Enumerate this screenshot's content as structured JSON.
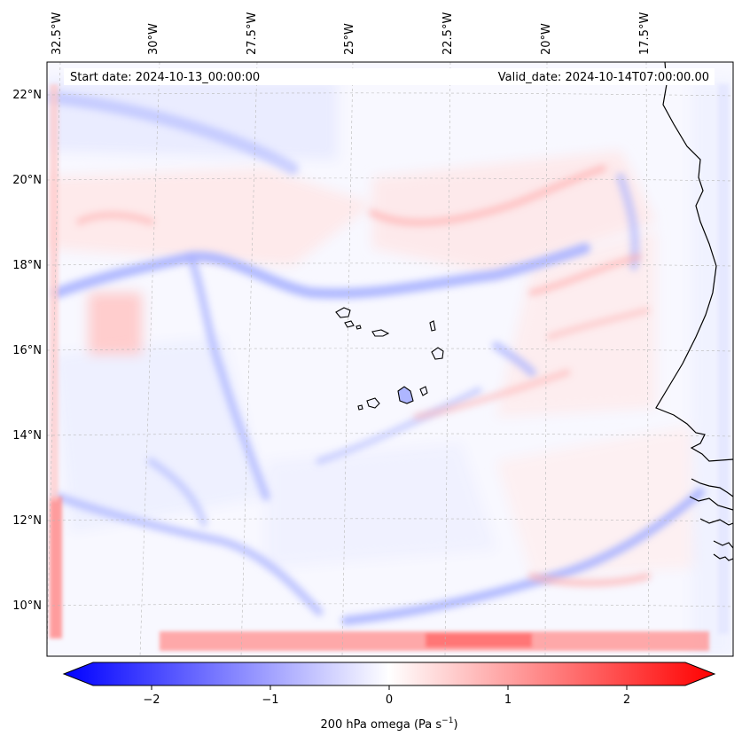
{
  "annotations": {
    "start_date": "Start date: 2024-10-13_00:00:00",
    "valid_date": "Valid_date: 2024-10-14T07:00:00.00"
  },
  "lon_labels": [
    "32.5°W",
    "30°W",
    "27.5°W",
    "25°W",
    "22.5°W",
    "20°W",
    "17.5°W"
  ],
  "lat_labels": [
    "22°N",
    "20°N",
    "18°N",
    "16°N",
    "14°N",
    "12°N",
    "10°N"
  ],
  "colorbar": {
    "label": "200 hPa omega (Pa s",
    "label_sup": "−1",
    "label_tail": ")",
    "ticks": [
      "−2",
      "−1",
      "0",
      "1",
      "2"
    ],
    "tick_values": [
      -2,
      -1,
      0,
      1,
      2
    ],
    "vmin": -2.6,
    "vmax": 2.6,
    "extend": "both",
    "colormap": "bwr",
    "colors": {
      "negative": "#0000ff",
      "zero": "#ffffff",
      "positive": "#ff0000"
    }
  },
  "map": {
    "projection": "Lambert conformal",
    "gridlines": true,
    "coastline_color": "#000000"
  }
}
